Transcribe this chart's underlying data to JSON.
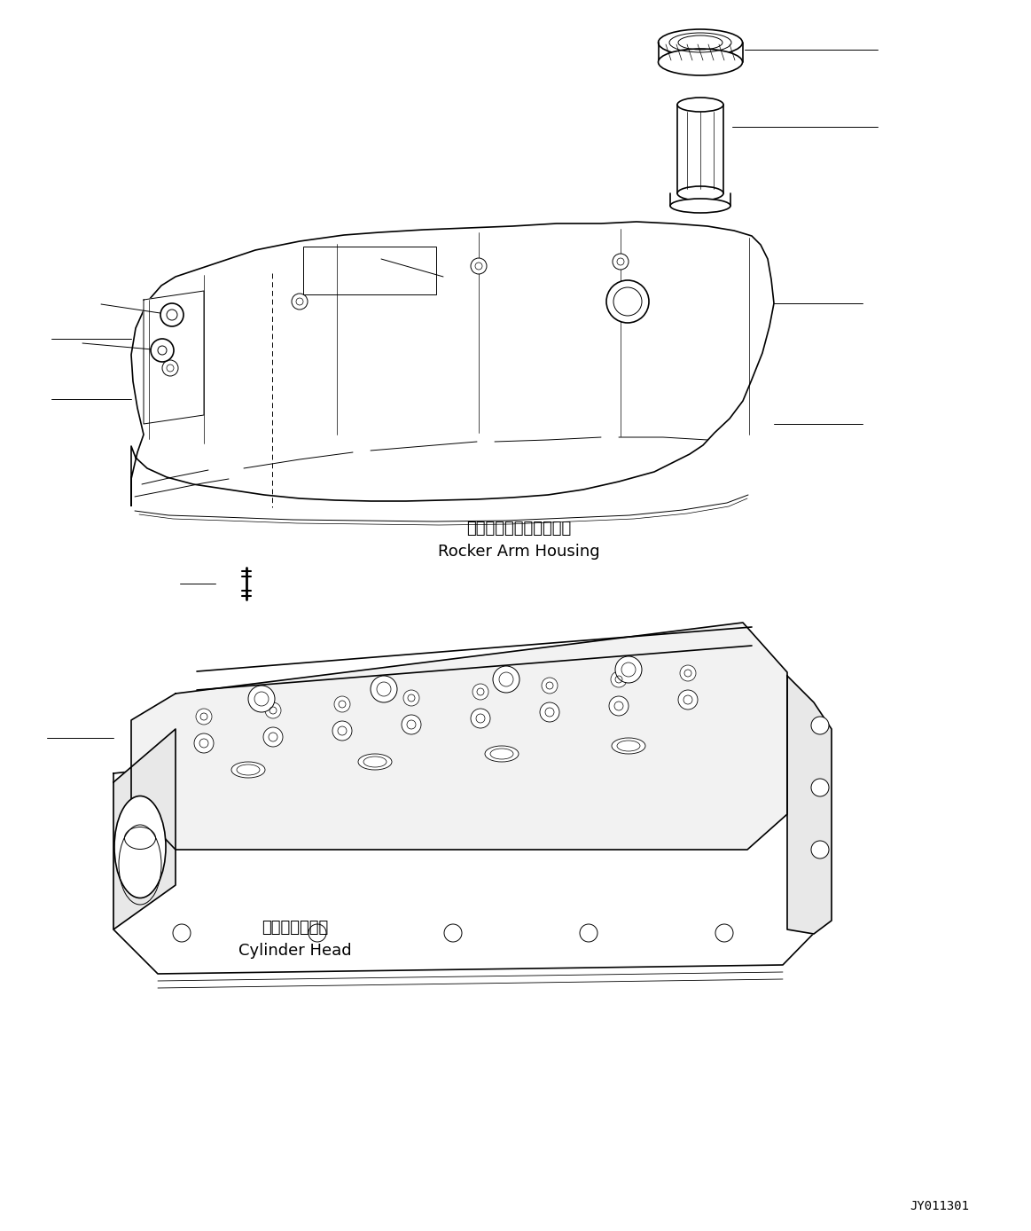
{
  "bg_color": "#ffffff",
  "line_color": "#000000",
  "figure_id": "JY011301",
  "label_rocker_jp": "ロッカアームハウジング",
  "label_rocker_en": "Rocker Arm Housing",
  "label_cylinder_jp": "シリンダヘッド",
  "label_cylinder_en": "Cylinder Head",
  "font_size_label": 13,
  "font_size_id": 10
}
